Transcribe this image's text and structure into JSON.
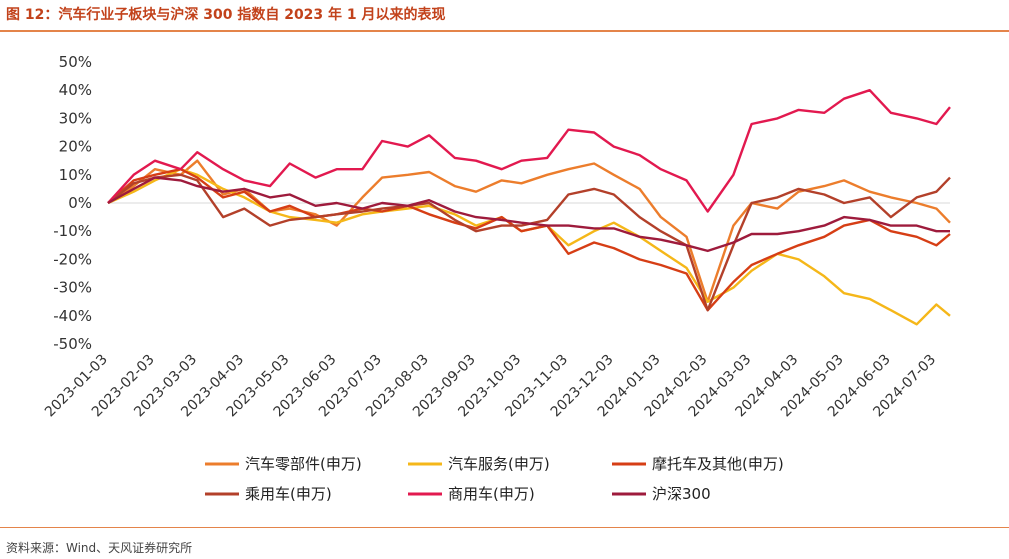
{
  "title": "图 12：汽车行业子板块与沪深 300 指数自 2023 年 1 月以来的表现",
  "source": "资料来源：Wind、天风证券研究所",
  "chart_data": {
    "type": "line",
    "ylim": [
      -50,
      50
    ],
    "yticks": [
      "50%",
      "40%",
      "30%",
      "20%",
      "10%",
      "0%",
      "-10%",
      "-20%",
      "-30%",
      "-40%",
      "-50%"
    ],
    "xticks": [
      "2023-01-03",
      "2023-02-03",
      "2023-03-03",
      "2023-04-03",
      "2023-05-03",
      "2023-06-03",
      "2023-07-03",
      "2023-08-03",
      "2023-09-03",
      "2023-10-03",
      "2023-11-03",
      "2023-12-03",
      "2024-01-03",
      "2024-02-03",
      "2024-03-03",
      "2024-04-03",
      "2024-05-03",
      "2024-06-03",
      "2024-07-03"
    ],
    "x": [
      "2023-01-03",
      "2023-01-20",
      "2023-02-03",
      "2023-02-20",
      "2023-03-03",
      "2023-03-20",
      "2023-04-03",
      "2023-04-20",
      "2023-05-03",
      "2023-05-20",
      "2023-06-03",
      "2023-06-20",
      "2023-07-03",
      "2023-07-20",
      "2023-08-03",
      "2023-08-20",
      "2023-09-03",
      "2023-09-20",
      "2023-10-03",
      "2023-10-20",
      "2023-11-03",
      "2023-11-20",
      "2023-12-03",
      "2023-12-20",
      "2024-01-03",
      "2024-01-20",
      "2024-02-03",
      "2024-02-20",
      "2024-03-03",
      "2024-03-20",
      "2024-04-03",
      "2024-04-20",
      "2024-05-03",
      "2024-05-20",
      "2024-06-03",
      "2024-06-20",
      "2024-07-03",
      "2024-07-12"
    ],
    "series": [
      {
        "name": "汽车零部件(申万)",
        "color": "#ec7d2c",
        "values": [
          0,
          6,
          12,
          10,
          15,
          3,
          5,
          -3,
          -2,
          -4,
          -8,
          2,
          9,
          10,
          11,
          6,
          4,
          8,
          7,
          10,
          12,
          14,
          10,
          5,
          -5,
          -12,
          -35,
          -8,
          0,
          -2,
          4,
          6,
          8,
          4,
          2,
          0,
          -2,
          -7
        ]
      },
      {
        "name": "汽车服务(申万)",
        "color": "#f5b719",
        "values": [
          0,
          4,
          8,
          12,
          10,
          5,
          2,
          -3,
          -5,
          -6,
          -7,
          -4,
          -3,
          -2,
          -1,
          -4,
          -8,
          -5,
          -10,
          -8,
          -15,
          -10,
          -7,
          -12,
          -17,
          -23,
          -35,
          -30,
          -24,
          -18,
          -20,
          -26,
          -32,
          -34,
          -38,
          -43,
          -36,
          -40
        ]
      },
      {
        "name": "摩托车及其他(申万)",
        "color": "#d63e15",
        "values": [
          0,
          8,
          10,
          12,
          9,
          2,
          4,
          -3,
          -1,
          -5,
          -4,
          -2,
          -3,
          -1,
          -4,
          -7,
          -9,
          -5,
          -10,
          -8,
          -18,
          -14,
          -16,
          -20,
          -22,
          -25,
          -38,
          -28,
          -22,
          -18,
          -15,
          -12,
          -8,
          -6,
          -10,
          -12,
          -15,
          -11
        ]
      },
      {
        "name": "乘用车(申万)",
        "color": "#b3402a",
        "values": [
          0,
          7,
          9,
          10,
          8,
          -5,
          -2,
          -8,
          -6,
          -5,
          -4,
          -3,
          -2,
          -1,
          0,
          -6,
          -10,
          -8,
          -8,
          -6,
          3,
          5,
          3,
          -5,
          -10,
          -15,
          -38,
          -15,
          0,
          2,
          5,
          3,
          0,
          2,
          -5,
          2,
          4,
          9
        ]
      },
      {
        "name": "商用车(申万)",
        "color": "#e2194f",
        "values": [
          0,
          10,
          15,
          12,
          18,
          12,
          8,
          6,
          14,
          9,
          12,
          12,
          22,
          20,
          24,
          16,
          15,
          12,
          15,
          16,
          26,
          25,
          20,
          17,
          12,
          8,
          -3,
          10,
          28,
          30,
          33,
          32,
          37,
          40,
          32,
          30,
          28,
          34
        ]
      },
      {
        "name": "沪深300",
        "color": "#9e1b3c",
        "values": [
          0,
          5,
          9,
          8,
          6,
          4,
          5,
          2,
          3,
          -1,
          0,
          -2,
          0,
          -1,
          1,
          -3,
          -5,
          -6,
          -7,
          -8,
          -8,
          -9,
          -9,
          -12,
          -13,
          -15,
          -17,
          -14,
          -11,
          -11,
          -10,
          -8,
          -5,
          -6,
          -8,
          -8,
          -10,
          -10
        ]
      }
    ],
    "legend_placement": "bottom",
    "grid": false
  }
}
